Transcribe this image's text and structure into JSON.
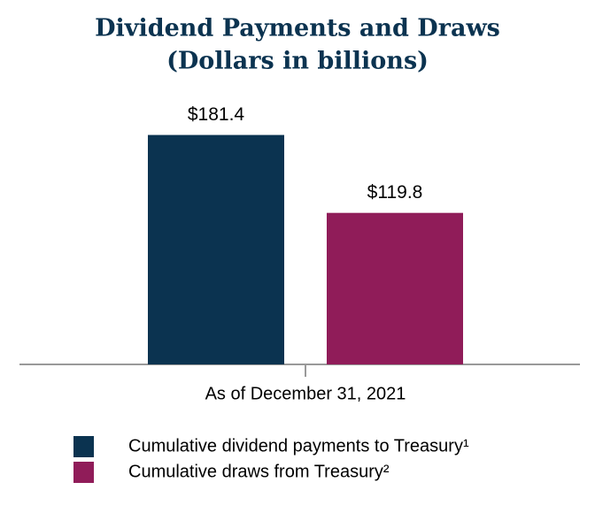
{
  "chart_data": {
    "type": "bar",
    "title": "Dividend Payments and Draws",
    "subtitle": "(Dollars in billions)",
    "categories": [
      "As of December 31, 2021"
    ],
    "series": [
      {
        "name": "Cumulative dividend payments to Treasury¹",
        "color": "#0b3350",
        "values": [
          181.4
        ],
        "value_labels": [
          "$181.4"
        ]
      },
      {
        "name": "Cumulative draws from Treasury²",
        "color": "#901c59",
        "values": [
          119.8
        ],
        "value_labels": [
          "$119.8"
        ]
      }
    ],
    "ylim": [
      0,
      200
    ]
  }
}
